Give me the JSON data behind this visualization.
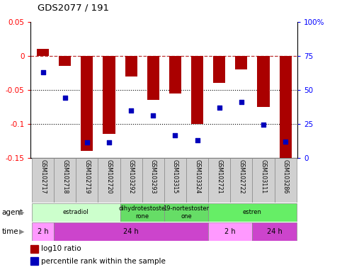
{
  "title": "GDS2077 / 191",
  "samples": [
    "GSM102717",
    "GSM102718",
    "GSM102719",
    "GSM102720",
    "GSM103292",
    "GSM103293",
    "GSM103315",
    "GSM103324",
    "GSM102721",
    "GSM102722",
    "GSM103111",
    "GSM103286"
  ],
  "log10_ratio": [
    0.01,
    -0.015,
    -0.14,
    -0.115,
    -0.03,
    -0.065,
    -0.055,
    -0.1,
    -0.04,
    -0.02,
    -0.075,
    -0.155
  ],
  "percentile_rank_pct": [
    63,
    44,
    11.5,
    11.5,
    35,
    31,
    16.5,
    13,
    37,
    41,
    24.5,
    12
  ],
  "ylim_left": [
    -0.15,
    0.05
  ],
  "ylim_right": [
    0,
    100
  ],
  "left_yticks": [
    -0.15,
    -0.1,
    -0.05,
    0.0,
    0.05
  ],
  "left_yticklabels": [
    "-0.15",
    "-0.1",
    "-0.05",
    "0",
    "0.05"
  ],
  "right_yticks": [
    0,
    25,
    50,
    75,
    100
  ],
  "right_yticklabels": [
    "0",
    "25",
    "50",
    "75",
    "100%"
  ],
  "hline_zero": 0.0,
  "hlines_dotted": [
    -0.05,
    -0.1
  ],
  "bar_color": "#AA0000",
  "dot_color": "#0000BB",
  "agent_groups": [
    {
      "label": "estradiol",
      "start": 0,
      "end": 4,
      "color": "#CCFFCC"
    },
    {
      "label": "dihydrotestoste\nrone",
      "start": 4,
      "end": 6,
      "color": "#66DD66"
    },
    {
      "label": "19-nortestoster\none",
      "start": 6,
      "end": 8,
      "color": "#66DD66"
    },
    {
      "label": "estren",
      "start": 8,
      "end": 12,
      "color": "#66EE66"
    }
  ],
  "time_groups": [
    {
      "label": "2 h",
      "start": 0,
      "end": 1,
      "color": "#FF99FF"
    },
    {
      "label": "24 h",
      "start": 1,
      "end": 8,
      "color": "#CC44CC"
    },
    {
      "label": "2 h",
      "start": 8,
      "end": 10,
      "color": "#FF99FF"
    },
    {
      "label": "24 h",
      "start": 10,
      "end": 12,
      "color": "#CC44CC"
    }
  ],
  "legend_bar_label": "log10 ratio",
  "legend_dot_label": "percentile rank within the sample",
  "xlabel_agent": "agent",
  "xlabel_time": "time"
}
